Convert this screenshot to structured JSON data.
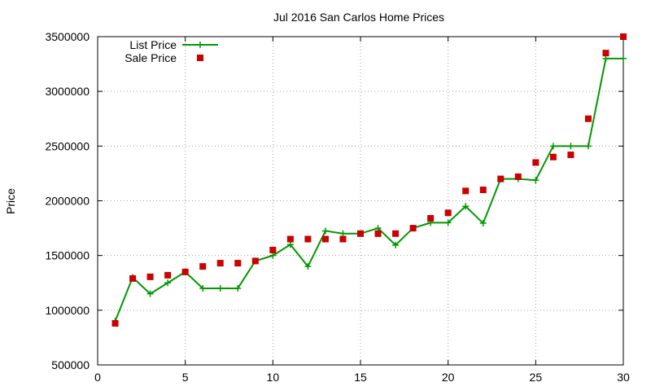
{
  "chart_data": {
    "type": "line",
    "title": "Jul 2016 San Carlos Home Prices",
    "xlabel": "",
    "ylabel": "Price",
    "xlim": [
      0,
      30
    ],
    "ylim": [
      500000,
      3500000
    ],
    "xticks": [
      "0",
      "5",
      "10",
      "15",
      "20",
      "25",
      "30"
    ],
    "yticks": [
      "500000",
      "1000000",
      "1500000",
      "2000000",
      "2500000",
      "3000000",
      "3500000"
    ],
    "grid": true,
    "legend_position": "top-left",
    "x": [
      1,
      2,
      3,
      4,
      5,
      6,
      7,
      8,
      9,
      10,
      11,
      12,
      13,
      14,
      15,
      16,
      17,
      18,
      19,
      20,
      21,
      22,
      23,
      24,
      25,
      26,
      27,
      28,
      29,
      30
    ],
    "series": [
      {
        "name": "List Price",
        "style": "line-with-plus-markers",
        "color": "#009900",
        "values": [
          900000,
          1300000,
          1150000,
          1250000,
          1350000,
          1200000,
          1200000,
          1200000,
          1450000,
          1500000,
          1600000,
          1400000,
          1725000,
          1700000,
          1700000,
          1750000,
          1595000,
          1750000,
          1800000,
          1800000,
          1950000,
          1795000,
          2200000,
          2200000,
          2188000,
          2500000,
          2500000,
          2500000,
          3300000,
          3300000
        ]
      },
      {
        "name": "Sale Price",
        "style": "square-markers",
        "color": "#cc0000",
        "values": [
          880000,
          1290000,
          1305000,
          1320000,
          1350000,
          1400000,
          1430000,
          1430000,
          1450000,
          1550000,
          1650000,
          1650000,
          1650000,
          1650000,
          1700000,
          1700000,
          1700000,
          1750000,
          1840000,
          1890000,
          2090000,
          2100000,
          2200000,
          2220000,
          2350000,
          2400000,
          2420000,
          2750000,
          3350000,
          3500000
        ]
      }
    ]
  }
}
